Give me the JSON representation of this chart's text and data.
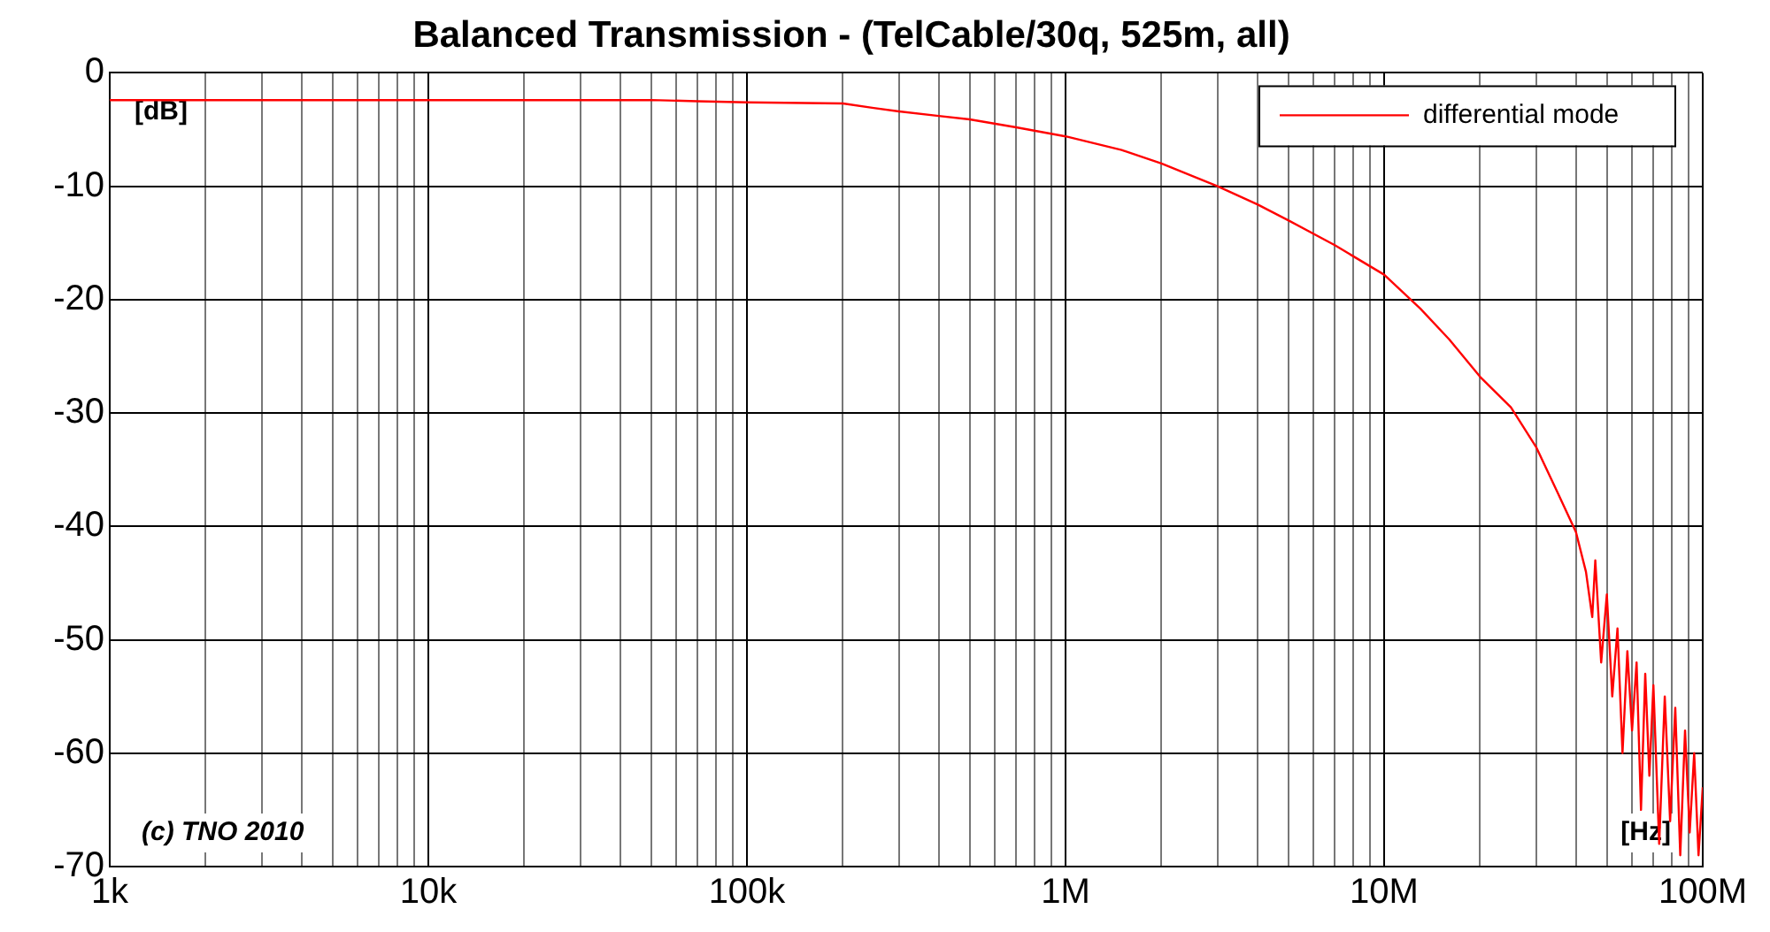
{
  "chart_data": {
    "type": "line",
    "title": "Balanced Transmission - (TelCable/30q, 525m, all)",
    "log": "x",
    "grid": true,
    "legend": "top right",
    "marker": "none",
    "line_style": "solid",
    "xlim": [
      1000,
      100000000
    ],
    "xticks": [
      {
        "value": 1000,
        "label": "1k"
      },
      {
        "value": 2000,
        "label": null
      },
      {
        "value": 3000,
        "label": null
      },
      {
        "value": 4000,
        "label": null
      },
      {
        "value": 5000,
        "label": null
      },
      {
        "value": 6000,
        "label": null
      },
      {
        "value": 7000,
        "label": null
      },
      {
        "value": 8000,
        "label": null
      },
      {
        "value": 9000,
        "label": null
      },
      {
        "value": 10000,
        "label": "10k"
      },
      {
        "value": 20000,
        "label": null
      },
      {
        "value": 30000,
        "label": null
      },
      {
        "value": 40000,
        "label": null
      },
      {
        "value": 50000,
        "label": null
      },
      {
        "value": 60000,
        "label": null
      },
      {
        "value": 70000,
        "label": null
      },
      {
        "value": 80000,
        "label": null
      },
      {
        "value": 90000,
        "label": null
      },
      {
        "value": 100000,
        "label": "100k"
      },
      {
        "value": 200000,
        "label": null
      },
      {
        "value": 300000,
        "label": null
      },
      {
        "value": 400000,
        "label": null
      },
      {
        "value": 500000,
        "label": null
      },
      {
        "value": 600000,
        "label": null
      },
      {
        "value": 700000,
        "label": null
      },
      {
        "value": 800000,
        "label": null
      },
      {
        "value": 900000,
        "label": null
      },
      {
        "value": 1000000,
        "label": "1M"
      },
      {
        "value": 2000000,
        "label": null
      },
      {
        "value": 3000000,
        "label": null
      },
      {
        "value": 4000000,
        "label": null
      },
      {
        "value": 5000000,
        "label": null
      },
      {
        "value": 6000000,
        "label": null
      },
      {
        "value": 7000000,
        "label": null
      },
      {
        "value": 8000000,
        "label": null
      },
      {
        "value": 9000000,
        "label": null
      },
      {
        "value": 10000000,
        "label": "10M"
      },
      {
        "value": 20000000,
        "label": null
      },
      {
        "value": 30000000,
        "label": null
      },
      {
        "value": 40000000,
        "label": null
      },
      {
        "value": 50000000,
        "label": null
      },
      {
        "value": 60000000,
        "label": null
      },
      {
        "value": 70000000,
        "label": null
      },
      {
        "value": 80000000,
        "label": null
      },
      {
        "value": 90000000,
        "label": null
      },
      {
        "value": 100000000,
        "label": "100M"
      }
    ],
    "ylim": [
      -70,
      0
    ],
    "yticks": [
      -70,
      -60,
      -50,
      -40,
      -30,
      -20,
      -10,
      0
    ],
    "annotations": [
      "[dB]",
      "(c) TNO 2010",
      "[Hz]"
    ],
    "series": [
      {
        "name": "differential mode",
        "color": "#ff0000",
        "x": [
          1000,
          10000,
          50000,
          70000,
          100000,
          200000,
          250000,
          300000,
          400000,
          500000,
          700000,
          1000000,
          1500000,
          2000000,
          3000000,
          4000000,
          5000000,
          7000000,
          10000000,
          13000000,
          16000000,
          20000000,
          25000000,
          30000000,
          35000000,
          40000000,
          43000000,
          45000000,
          46000000,
          48000000,
          50000000,
          52000000,
          54000000,
          56000000,
          58000000,
          60000000,
          62000000,
          64000000,
          66000000,
          68000000,
          70000000,
          73000000,
          76000000,
          79000000,
          82000000,
          85000000,
          88000000,
          91000000,
          94000000,
          97000000,
          100000000
        ],
        "values": [
          -2.4,
          -2.4,
          -2.4,
          -2.5,
          -2.6,
          -2.7,
          -3.1,
          -3.4,
          -3.8,
          -4.1,
          -4.8,
          -5.6,
          -6.8,
          -8.0,
          -10.0,
          -11.6,
          -13.0,
          -15.2,
          -17.8,
          -20.8,
          -23.5,
          -26.8,
          -29.5,
          -33,
          -37,
          -40.5,
          -44,
          -48,
          -43,
          -52,
          -46,
          -55,
          -49,
          -60,
          -51,
          -58,
          -52,
          -65,
          -53,
          -62,
          -54,
          -68,
          -55,
          -66,
          -56,
          -69,
          -58,
          -67,
          -60,
          -69,
          -63
        ]
      }
    ]
  }
}
